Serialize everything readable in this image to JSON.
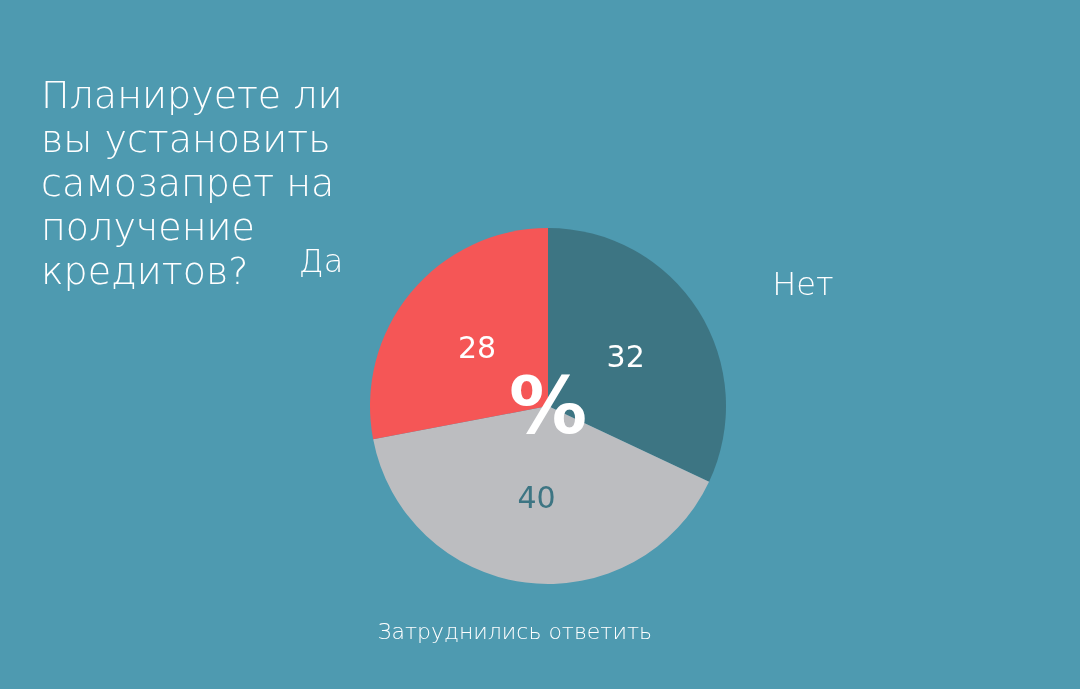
{
  "chart_data": {
    "type": "pie",
    "title": "Планируете ли вы установить самозапрет на получение кредитов?",
    "categories": [
      "Нет",
      "Затруднились ответить",
      "Да"
    ],
    "values": [
      32,
      40,
      28
    ],
    "colors": [
      "#3d7583",
      "#bcbdc0",
      "#f55656"
    ],
    "data_labels": true,
    "annotations": [
      "%"
    ],
    "legend": false
  }
}
